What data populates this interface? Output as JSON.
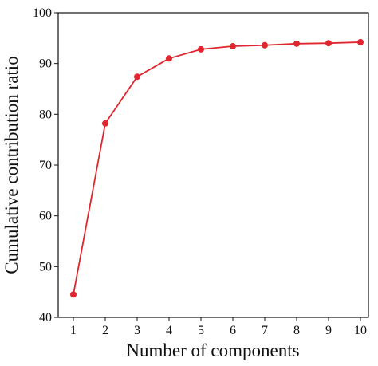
{
  "chart_data": {
    "type": "line",
    "x_label": "Number of components",
    "y_label": "Cumulative contribution ratio",
    "x": [
      1,
      2,
      3,
      4,
      5,
      6,
      7,
      8,
      9,
      10
    ],
    "series": [
      {
        "color": "#e0262e",
        "values": [
          44.5,
          78.2,
          87.4,
          91.0,
          92.8,
          93.4,
          93.6,
          93.9,
          94.0,
          94.2
        ]
      }
    ],
    "xlim": [
      0.525,
      10.25
    ],
    "xticks": [
      1,
      2,
      3,
      4,
      5,
      6,
      7,
      8,
      9,
      10
    ],
    "ylim": [
      40,
      100
    ],
    "yticks": [
      40,
      50,
      60,
      70,
      80,
      90,
      100
    ],
    "grid": false
  }
}
